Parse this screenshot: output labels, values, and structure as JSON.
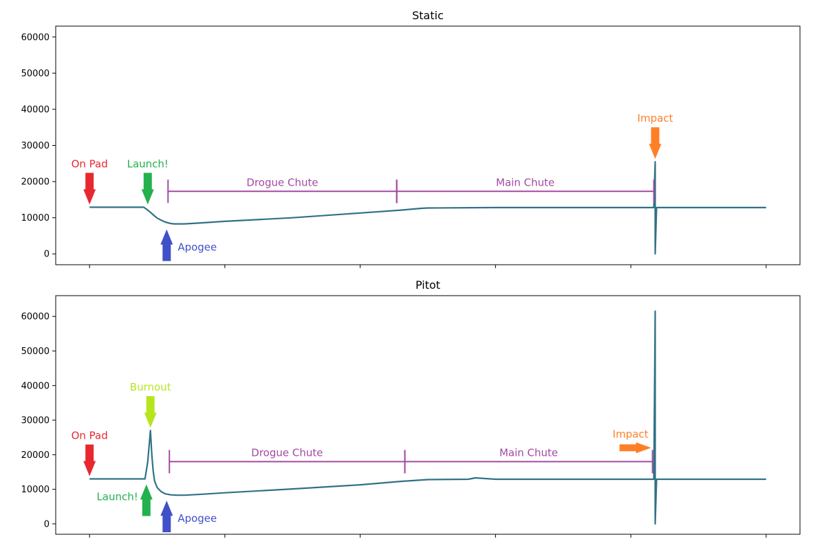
{
  "chart_data": [
    {
      "type": "line",
      "title": "Static",
      "xlabel": "",
      "ylabel": "",
      "ylim": [
        -3000,
        63000
      ],
      "yticks": [
        0,
        10000,
        20000,
        30000,
        40000,
        50000,
        60000
      ],
      "ytick_labels": [
        "0",
        "10000",
        "20000",
        "30000",
        "40000",
        "50000",
        "60000"
      ],
      "xlim": [
        -0.25,
        5.25
      ],
      "xticks": [
        0,
        1,
        2,
        3,
        4,
        5
      ],
      "x_tick_labels_shown": false,
      "grid": false,
      "series_color": "#2f7186",
      "series": [
        {
          "x": [
            0.0,
            0.2,
            0.4,
            0.42,
            0.45,
            0.48,
            0.5,
            0.53,
            0.56,
            0.6,
            0.63,
            0.66,
            0.7,
            0.8,
            1.0,
            1.5,
            2.0,
            2.3,
            2.45,
            2.5,
            3.0,
            3.5,
            4.0,
            4.17,
            4.18,
            4.18,
            4.19,
            4.2,
            4.6,
            5.0
          ],
          "y": [
            12900,
            12900,
            12900,
            12400,
            11500,
            10500,
            9900,
            9300,
            8800,
            8400,
            8300,
            8300,
            8300,
            8500,
            9000,
            10000,
            11300,
            12100,
            12600,
            12700,
            12800,
            12800,
            12800,
            12800,
            25500,
            0,
            12800,
            12800,
            12800,
            12800
          ]
        }
      ],
      "annotations": [
        {
          "text": "On Pad",
          "color": "#e8282f",
          "arrow": "down",
          "at": {
            "x": 0.0,
            "y": 12900
          }
        },
        {
          "text": "Launch!",
          "color": "#22b14c",
          "arrow": "down",
          "at": {
            "x": 0.43,
            "y": 12900
          }
        },
        {
          "text": "Apogee",
          "color": "#4050c8",
          "arrow": "up",
          "at": {
            "x": 0.57,
            "y": 8300
          }
        },
        {
          "text": "Impact",
          "color": "#ff7f27",
          "arrow": "down",
          "at": {
            "x": 4.18,
            "y": 25500
          }
        },
        {
          "text": "Drogue Chute",
          "color": "#a349a4",
          "span": [
            0.58,
            2.27
          ],
          "y": 17300
        },
        {
          "text": "Main Chute",
          "color": "#a349a4",
          "span": [
            2.27,
            4.17
          ],
          "y": 17300
        }
      ]
    },
    {
      "type": "line",
      "title": "Pitot",
      "xlabel": "",
      "ylabel": "",
      "ylim": [
        -3000,
        66000
      ],
      "yticks": [
        0,
        10000,
        20000,
        30000,
        40000,
        50000,
        60000
      ],
      "ytick_labels": [
        "0",
        "10000",
        "20000",
        "30000",
        "40000",
        "50000",
        "60000"
      ],
      "xlim": [
        -0.25,
        5.25
      ],
      "xticks": [
        0,
        1,
        2,
        3,
        4,
        5
      ],
      "x_tick_labels_shown": false,
      "grid": false,
      "series_color": "#2f7186",
      "series": [
        {
          "x": [
            0.0,
            0.2,
            0.41,
            0.43,
            0.45,
            0.46,
            0.47,
            0.48,
            0.5,
            0.53,
            0.56,
            0.6,
            0.65,
            0.7,
            0.8,
            1.0,
            1.5,
            2.0,
            2.3,
            2.5,
            2.8,
            2.85,
            3.0,
            3.5,
            4.0,
            4.17,
            4.18,
            4.18,
            4.19,
            4.2,
            4.6,
            5.0
          ],
          "y": [
            13000,
            13000,
            13000,
            18000,
            27000,
            20000,
            15500,
            12500,
            10500,
            9300,
            8700,
            8400,
            8300,
            8300,
            8500,
            9000,
            10100,
            11300,
            12300,
            12800,
            12900,
            13300,
            12900,
            12900,
            12900,
            12900,
            61500,
            0,
            12900,
            12900,
            12900,
            12900
          ]
        }
      ],
      "annotations": [
        {
          "text": "On Pad",
          "color": "#e8282f",
          "arrow": "down",
          "at": {
            "x": 0.0,
            "y": 13000
          }
        },
        {
          "text": "Burnout",
          "color": "#b5e61d",
          "arrow": "down",
          "at": {
            "x": 0.45,
            "y": 27000
          }
        },
        {
          "text": "Launch!",
          "color": "#22b14c",
          "arrow": "up",
          "at": {
            "x": 0.42,
            "y": 13000
          }
        },
        {
          "text": "Apogee",
          "color": "#4050c8",
          "arrow": "up",
          "at": {
            "x": 0.57,
            "y": 8300
          }
        },
        {
          "text": "Impact",
          "color": "#ff7f27",
          "arrow": "right",
          "at": {
            "x": 4.15,
            "y": 22000
          }
        },
        {
          "text": "Drogue Chute",
          "color": "#a349a4",
          "span": [
            0.59,
            2.33
          ],
          "y": 18000
        },
        {
          "text": "Main Chute",
          "color": "#a349a4",
          "span": [
            2.33,
            4.16
          ],
          "y": 18000
        }
      ]
    }
  ]
}
